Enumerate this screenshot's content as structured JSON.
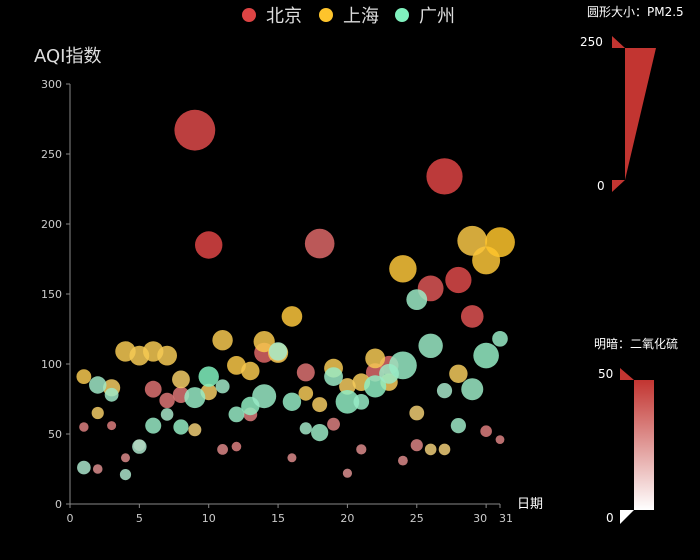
{
  "chart_data": {
    "type": "scatter",
    "ylabel": "AQI指数",
    "xlabel": "日期",
    "xlim": [
      0,
      31
    ],
    "ylim": [
      0,
      300
    ],
    "x_ticks": [
      "0",
      "5",
      "10",
      "15",
      "20",
      "25",
      "30",
      "31"
    ],
    "y_ticks": [
      "0",
      "50",
      "100",
      "150",
      "200",
      "250",
      "300"
    ],
    "size_encoding": {
      "label": "圆形大小：PM2.5",
      "max_label": "250",
      "min_label": "0",
      "max": 250,
      "min": 0
    },
    "lightness_encoding": {
      "label": "明暗：二氧化硫",
      "max_label": "50",
      "min_label": "0",
      "max": 50,
      "min": 0
    },
    "legend_position": "top-center",
    "series": [
      {
        "name": "北京",
        "color": "#dd4444",
        "points": [
          {
            "x": 1,
            "y": 55,
            "size": 9,
            "shade": 56
          },
          {
            "x": 2,
            "y": 25,
            "size": 11,
            "shade": 21
          },
          {
            "x": 3,
            "y": 56,
            "size": 7,
            "shade": 63
          },
          {
            "x": 4,
            "y": 33,
            "size": 7,
            "shade": 29
          },
          {
            "x": 5,
            "y": 42,
            "size": 24,
            "shade": 44
          },
          {
            "x": 6,
            "y": 82,
            "size": 58,
            "shade": 90
          },
          {
            "x": 7,
            "y": 74,
            "size": 49,
            "shade": 77
          },
          {
            "x": 8,
            "y": 78,
            "size": 55,
            "shade": 80
          },
          {
            "x": 9,
            "y": 267,
            "size": 216,
            "shade": 186
          },
          {
            "x": 10,
            "y": 185,
            "size": 127,
            "shade": 216
          },
          {
            "x": 11,
            "y": 39,
            "size": 19,
            "shade": 38
          },
          {
            "x": 12,
            "y": 41,
            "size": 11,
            "shade": 56
          },
          {
            "x": 13,
            "y": 64,
            "size": 38,
            "shade": 65
          },
          {
            "x": 14,
            "y": 108,
            "size": 79,
            "shade": 120
          },
          {
            "x": 15,
            "y": 108,
            "size": 63,
            "shade": 116
          },
          {
            "x": 16,
            "y": 33,
            "size": 6,
            "shade": 29
          },
          {
            "x": 17,
            "y": 94,
            "size": 66,
            "shade": 87
          },
          {
            "x": 18,
            "y": 186,
            "size": 142,
            "shade": 114
          },
          {
            "x": 19,
            "y": 57,
            "size": 31,
            "shade": 54
          },
          {
            "x": 20,
            "y": 22,
            "size": 8,
            "shade": 17
          },
          {
            "x": 21,
            "y": 39,
            "size": 15,
            "shade": 27
          },
          {
            "x": 22,
            "y": 94,
            "size": 69,
            "shade": 105
          },
          {
            "x": 23,
            "y": 99,
            "size": 73,
            "shade": 110
          },
          {
            "x": 24,
            "y": 31,
            "size": 12,
            "shade": 30
          },
          {
            "x": 25,
            "y": 42,
            "size": 27,
            "shade": 43
          },
          {
            "x": 26,
            "y": 154,
            "size": 117,
            "shade": 157
          },
          {
            "x": 27,
            "y": 234,
            "size": 185,
            "shade": 230
          },
          {
            "x": 28,
            "y": 160,
            "size": 120,
            "shade": 186
          },
          {
            "x": 29,
            "y": 134,
            "size": 96,
            "shade": 165
          },
          {
            "x": 30,
            "y": 52,
            "size": 24,
            "shade": 60
          },
          {
            "x": 31,
            "y": 46,
            "size": 5,
            "shade": 49
          }
        ]
      },
      {
        "name": "上海",
        "color": "#fec42c",
        "points": [
          {
            "x": 1,
            "y": 91,
            "size": 45,
            "shade": 125
          },
          {
            "x": 2,
            "y": 65,
            "size": 27,
            "shade": 78
          },
          {
            "x": 3,
            "y": 83,
            "size": 60,
            "shade": 84
          },
          {
            "x": 4,
            "y": 109,
            "size": 81,
            "shade": 121
          },
          {
            "x": 5,
            "y": 106,
            "size": 77,
            "shade": 114
          },
          {
            "x": 6,
            "y": 109,
            "size": 81,
            "shade": 121
          },
          {
            "x": 7,
            "y": 106,
            "size": 77,
            "shade": 114
          },
          {
            "x": 8,
            "y": 89,
            "size": 65,
            "shade": 78
          },
          {
            "x": 9,
            "y": 53,
            "size": 33,
            "shade": 47
          },
          {
            "x": 10,
            "y": 80,
            "size": 55,
            "shade": 80
          },
          {
            "x": 11,
            "y": 117,
            "size": 81,
            "shade": 124
          },
          {
            "x": 12,
            "y": 99,
            "size": 71,
            "shade": 142
          },
          {
            "x": 13,
            "y": 95,
            "size": 69,
            "shade": 130
          },
          {
            "x": 14,
            "y": 116,
            "size": 87,
            "shade": 131
          },
          {
            "x": 15,
            "y": 108,
            "size": 80,
            "shade": 121
          },
          {
            "x": 16,
            "y": 134,
            "size": 83,
            "shade": 167
          },
          {
            "x": 17,
            "y": 79,
            "size": 43,
            "shade": 107
          },
          {
            "x": 18,
            "y": 71,
            "size": 46,
            "shade": 89
          },
          {
            "x": 19,
            "y": 97,
            "size": 71,
            "shade": 113
          },
          {
            "x": 20,
            "y": 84,
            "size": 57,
            "shade": 91
          },
          {
            "x": 21,
            "y": 87,
            "size": 63,
            "shade": 101
          },
          {
            "x": 22,
            "y": 104,
            "size": 77,
            "shade": 114
          },
          {
            "x": 23,
            "y": 87,
            "size": 62,
            "shade": 100
          },
          {
            "x": 24,
            "y": 168,
            "size": 128,
            "shade": 172
          },
          {
            "x": 25,
            "y": 65,
            "size": 45,
            "shade": 51
          },
          {
            "x": 26,
            "y": 39,
            "size": 24,
            "shade": 38
          },
          {
            "x": 27,
            "y": 39,
            "size": 24,
            "shade": 39
          },
          {
            "x": 28,
            "y": 93,
            "size": 68,
            "shade": 96
          },
          {
            "x": 29,
            "y": 188,
            "size": 143,
            "shade": 143
          },
          {
            "x": 30,
            "y": 174,
            "size": 131,
            "shade": 174
          },
          {
            "x": 31,
            "y": 187,
            "size": 143,
            "shade": 201
          }
        ]
      },
      {
        "name": "广州",
        "color": "#80f1be",
        "points": [
          {
            "x": 1,
            "y": 26,
            "size": 37,
            "shade": 27
          },
          {
            "x": 2,
            "y": 85,
            "size": 62,
            "shade": 71
          },
          {
            "x": 3,
            "y": 78,
            "size": 38,
            "shade": 74
          },
          {
            "x": 4,
            "y": 21,
            "size": 21,
            "shade": 16
          },
          {
            "x": 5,
            "y": 41,
            "size": 42,
            "shade": 24
          },
          {
            "x": 6,
            "y": 56,
            "size": 52,
            "shade": 100
          },
          {
            "x": 7,
            "y": 64,
            "size": 30,
            "shade": 38
          },
          {
            "x": 8,
            "y": 55,
            "size": 48,
            "shade": 120
          },
          {
            "x": 9,
            "y": 76,
            "size": 85,
            "shade": 109
          },
          {
            "x": 10,
            "y": 91,
            "size": 81,
            "shade": 200
          },
          {
            "x": 11,
            "y": 84,
            "size": 39,
            "shade": 66
          },
          {
            "x": 12,
            "y": 64,
            "size": 51,
            "shade": 106
          },
          {
            "x": 13,
            "y": 70,
            "size": 69,
            "shade": 140
          },
          {
            "x": 14,
            "y": 77,
            "size": 105,
            "shade": 98
          },
          {
            "x": 15,
            "y": 109,
            "size": 68,
            "shade": 51
          },
          {
            "x": 16,
            "y": 73,
            "size": 68,
            "shade": 117
          },
          {
            "x": 17,
            "y": 54,
            "size": 27,
            "shade": 62
          },
          {
            "x": 18,
            "y": 51,
            "size": 61,
            "shade": 88
          },
          {
            "x": 19,
            "y": 91,
            "size": 71,
            "shade": 94
          },
          {
            "x": 20,
            "y": 73,
            "size": 102,
            "shade": 130
          },
          {
            "x": 21,
            "y": 73,
            "size": 50,
            "shade": 105
          },
          {
            "x": 22,
            "y": 84,
            "size": 94,
            "shade": 137
          },
          {
            "x": 23,
            "y": 93,
            "size": 77,
            "shade": 90
          },
          {
            "x": 24,
            "y": 99,
            "size": 130,
            "shade": 103
          },
          {
            "x": 25,
            "y": 146,
            "size": 84,
            "shade": 91
          },
          {
            "x": 26,
            "y": 113,
            "size": 108,
            "shade": 93
          },
          {
            "x": 27,
            "y": 81,
            "size": 48,
            "shade": 40
          },
          {
            "x": 28,
            "y": 56,
            "size": 48,
            "shade": 78
          },
          {
            "x": 29,
            "y": 82,
            "size": 92,
            "shade": 89
          },
          {
            "x": 30,
            "y": 106,
            "size": 116,
            "shade": 118
          },
          {
            "x": 31,
            "y": 118,
            "size": 50,
            "shade": 100
          }
        ]
      }
    ]
  }
}
